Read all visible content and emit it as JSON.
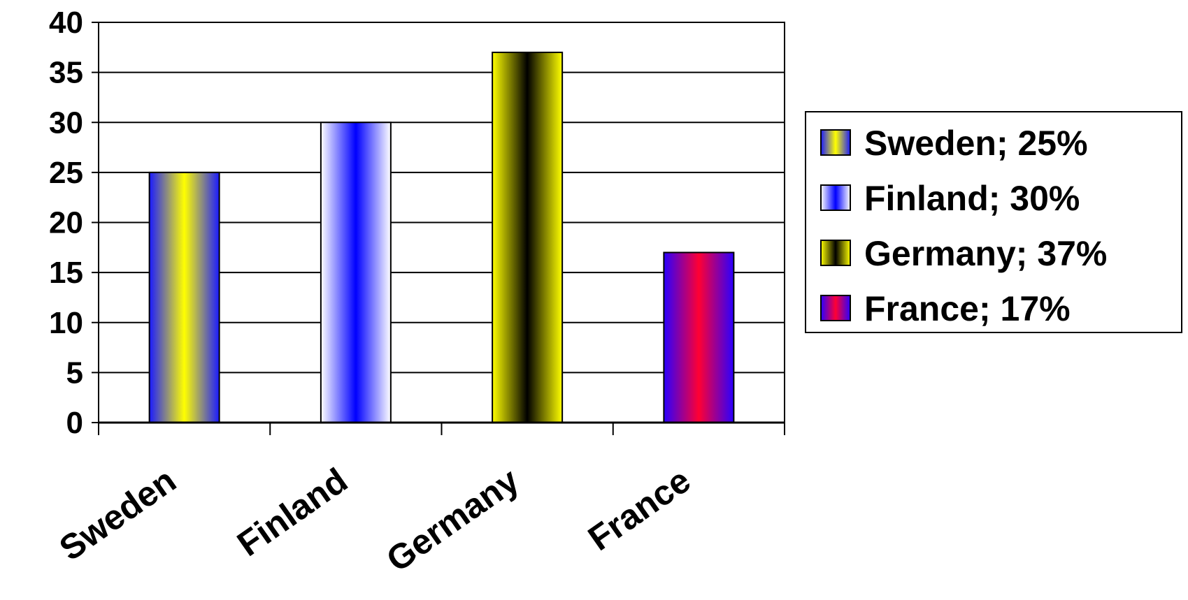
{
  "chart_data": {
    "type": "bar",
    "title": "",
    "xlabel": "",
    "ylabel": "",
    "categories": [
      "Sweden",
      "Finland",
      "Germany",
      "France"
    ],
    "values": [
      25,
      30,
      37,
      17
    ],
    "ylim": [
      0,
      40
    ],
    "yticks": [
      "0",
      "5",
      "10",
      "15",
      "20",
      "25",
      "30",
      "35",
      "40"
    ],
    "grid": "horizontal",
    "legend_position": "right",
    "legend": [
      {
        "label": "Sweden; 25%",
        "colors": [
          "#1a1aff",
          "#ffff00"
        ]
      },
      {
        "label": "Finland; 30%",
        "colors": [
          "#ffffff",
          "#0000ff"
        ]
      },
      {
        "label": "Germany; 37%",
        "colors": [
          "#ffff00",
          "#000000"
        ]
      },
      {
        "label": "France; 17%",
        "colors": [
          "#2a00ff",
          "#ff0033"
        ]
      }
    ]
  }
}
